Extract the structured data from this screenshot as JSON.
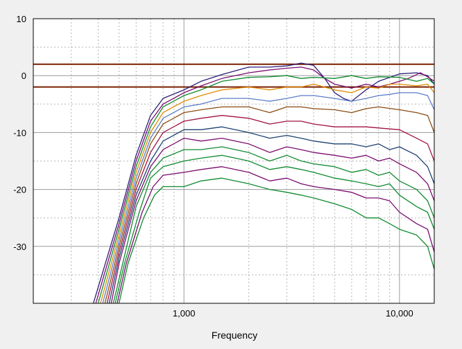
{
  "chart_data": {
    "type": "line",
    "title": "",
    "xlabel": "Frequency",
    "ylabel": "",
    "x_scale": "log",
    "xlim": [
      200,
      14500
    ],
    "ylim": [
      -40,
      10
    ],
    "x_ticks": [
      {
        "value": 1000,
        "label": "1,000"
      },
      {
        "value": 10000,
        "label": "10,000"
      }
    ],
    "y_ticks": [
      {
        "value": 10,
        "label": "10"
      },
      {
        "value": 0,
        "label": "0"
      },
      {
        "value": -10,
        "label": "-10"
      },
      {
        "value": -20,
        "label": "-20"
      },
      {
        "value": -30,
        "label": "-30"
      }
    ],
    "grid": true,
    "legend": "none",
    "reference_lines": [
      {
        "y": 2,
        "color": "#7a1f00"
      },
      {
        "y": -2,
        "color": "#7a1f00"
      }
    ],
    "series": [
      {
        "color": "#2a1e78",
        "points": [
          [
            380,
            -40
          ],
          [
            500,
            -25
          ],
          [
            600,
            -14
          ],
          [
            700,
            -7
          ],
          [
            800,
            -4
          ],
          [
            1000,
            -2.5
          ],
          [
            1200,
            -1
          ],
          [
            1500,
            0.2
          ],
          [
            2000,
            1.5
          ],
          [
            2500,
            1.5
          ],
          [
            3000,
            1.7
          ],
          [
            3500,
            2.2
          ],
          [
            4000,
            1.8
          ],
          [
            4500,
            -0.5
          ],
          [
            5000,
            -3
          ],
          [
            5500,
            -4
          ],
          [
            6000,
            -4.5
          ],
          [
            7000,
            -2.5
          ],
          [
            8000,
            -1
          ],
          [
            10000,
            0.3
          ],
          [
            12000,
            0.5
          ],
          [
            13500,
            0
          ],
          [
            14500,
            -1.5
          ]
        ]
      },
      {
        "color": "#7a0b6e",
        "points": [
          [
            390,
            -40
          ],
          [
            500,
            -26
          ],
          [
            600,
            -15
          ],
          [
            700,
            -8
          ],
          [
            800,
            -5
          ],
          [
            1000,
            -3
          ],
          [
            1200,
            -1.8
          ],
          [
            1500,
            -0.5
          ],
          [
            2000,
            0.5
          ],
          [
            2500,
            1
          ],
          [
            3000,
            1.3
          ],
          [
            3500,
            1.5
          ],
          [
            4000,
            1
          ],
          [
            4500,
            -0.5
          ],
          [
            5000,
            -1.5
          ],
          [
            6000,
            -2.2
          ],
          [
            7000,
            -1.5
          ],
          [
            8000,
            -2
          ],
          [
            9000,
            -1.5
          ],
          [
            10000,
            -1
          ],
          [
            11000,
            -0.5
          ],
          [
            12500,
            0.5
          ],
          [
            13500,
            -0.2
          ],
          [
            14500,
            -1
          ]
        ]
      },
      {
        "color": "#0e8a2e",
        "points": [
          [
            400,
            -40
          ],
          [
            500,
            -27
          ],
          [
            600,
            -16
          ],
          [
            700,
            -9
          ],
          [
            800,
            -5.5
          ],
          [
            1000,
            -3.5
          ],
          [
            1200,
            -2.5
          ],
          [
            1500,
            -1
          ],
          [
            2000,
            -0.3
          ],
          [
            2500,
            -0.2
          ],
          [
            3000,
            0
          ],
          [
            3500,
            -0.5
          ],
          [
            4000,
            -0.3
          ],
          [
            5000,
            -0.5
          ],
          [
            6000,
            0
          ],
          [
            7000,
            -0.5
          ],
          [
            8000,
            -0.2
          ],
          [
            10000,
            -0.3
          ],
          [
            12000,
            -1
          ],
          [
            13500,
            -0.5
          ],
          [
            14500,
            -1.5
          ]
        ]
      },
      {
        "color": "#e08a00",
        "points": [
          [
            410,
            -40
          ],
          [
            500,
            -28
          ],
          [
            600,
            -17
          ],
          [
            700,
            -10
          ],
          [
            800,
            -6.5
          ],
          [
            1000,
            -4.5
          ],
          [
            1200,
            -3.5
          ],
          [
            1500,
            -2.5
          ],
          [
            2000,
            -2
          ],
          [
            2500,
            -2.5
          ],
          [
            3000,
            -2
          ],
          [
            3500,
            -2
          ],
          [
            4000,
            -1.5
          ],
          [
            5000,
            -2.5
          ],
          [
            6000,
            -3
          ],
          [
            7000,
            -2
          ],
          [
            8000,
            -2.2
          ],
          [
            9000,
            -1.5
          ],
          [
            10000,
            -1.5
          ],
          [
            12000,
            -1.8
          ],
          [
            13500,
            -1.5
          ],
          [
            14500,
            -3
          ]
        ]
      },
      {
        "color": "#5a7ec8",
        "points": [
          [
            420,
            -40
          ],
          [
            500,
            -29
          ],
          [
            600,
            -18
          ],
          [
            700,
            -11
          ],
          [
            800,
            -7.5
          ],
          [
            1000,
            -5.5
          ],
          [
            1200,
            -5
          ],
          [
            1500,
            -4
          ],
          [
            2000,
            -4
          ],
          [
            2500,
            -4.5
          ],
          [
            3000,
            -4
          ],
          [
            3500,
            -3.5
          ],
          [
            4000,
            -3.5
          ],
          [
            5000,
            -4
          ],
          [
            6000,
            -4.5
          ],
          [
            7000,
            -4
          ],
          [
            8000,
            -3.5
          ],
          [
            9000,
            -3.3
          ],
          [
            10000,
            -3
          ],
          [
            12000,
            -3
          ],
          [
            13500,
            -3.5
          ],
          [
            14500,
            -6
          ]
        ]
      },
      {
        "color": "#8a4a10",
        "points": [
          [
            430,
            -40
          ],
          [
            500,
            -30
          ],
          [
            600,
            -19
          ],
          [
            700,
            -12
          ],
          [
            800,
            -8.5
          ],
          [
            1000,
            -6.5
          ],
          [
            1200,
            -6
          ],
          [
            1500,
            -5.5
          ],
          [
            2000,
            -5.5
          ],
          [
            2500,
            -6.5
          ],
          [
            3000,
            -5.5
          ],
          [
            3500,
            -5.5
          ],
          [
            4000,
            -5.8
          ],
          [
            5000,
            -6
          ],
          [
            6000,
            -6.5
          ],
          [
            7000,
            -5.8
          ],
          [
            8000,
            -5.5
          ],
          [
            10000,
            -6
          ],
          [
            12000,
            -6.5
          ],
          [
            13500,
            -7
          ],
          [
            14500,
            -10
          ]
        ]
      },
      {
        "color": "#a01040",
        "points": [
          [
            440,
            -40
          ],
          [
            500,
            -31
          ],
          [
            600,
            -20
          ],
          [
            700,
            -13.5
          ],
          [
            800,
            -10
          ],
          [
            1000,
            -8
          ],
          [
            1200,
            -7.5
          ],
          [
            1500,
            -7
          ],
          [
            2000,
            -7.5
          ],
          [
            2500,
            -8.5
          ],
          [
            3000,
            -8
          ],
          [
            3500,
            -8
          ],
          [
            4000,
            -8.5
          ],
          [
            5000,
            -9
          ],
          [
            6000,
            -9
          ],
          [
            7000,
            -9
          ],
          [
            8000,
            -9.2
          ],
          [
            10000,
            -9.5
          ],
          [
            12000,
            -11
          ],
          [
            13500,
            -12
          ],
          [
            14500,
            -15
          ]
        ]
      },
      {
        "color": "#1a4070",
        "points": [
          [
            450,
            -40
          ],
          [
            500,
            -32
          ],
          [
            600,
            -21
          ],
          [
            700,
            -15
          ],
          [
            800,
            -11.5
          ],
          [
            1000,
            -9.5
          ],
          [
            1200,
            -9.5
          ],
          [
            1500,
            -9
          ],
          [
            2000,
            -10
          ],
          [
            2500,
            -11
          ],
          [
            3000,
            -10.5
          ],
          [
            3500,
            -11
          ],
          [
            4000,
            -11.5
          ],
          [
            5000,
            -12
          ],
          [
            6000,
            -12
          ],
          [
            7000,
            -12.5
          ],
          [
            8000,
            -12
          ],
          [
            9000,
            -13
          ],
          [
            10000,
            -12.5
          ],
          [
            12000,
            -14
          ],
          [
            13500,
            -16
          ],
          [
            14500,
            -19
          ]
        ]
      },
      {
        "color": "#7a0b6e",
        "points": [
          [
            460,
            -40
          ],
          [
            500,
            -33
          ],
          [
            600,
            -22
          ],
          [
            700,
            -16
          ],
          [
            800,
            -13
          ],
          [
            1000,
            -11
          ],
          [
            1200,
            -11.5
          ],
          [
            1500,
            -11
          ],
          [
            2000,
            -12
          ],
          [
            2500,
            -13.5
          ],
          [
            3000,
            -12.5
          ],
          [
            3500,
            -13
          ],
          [
            4000,
            -13.5
          ],
          [
            5000,
            -14
          ],
          [
            6000,
            -14.5
          ],
          [
            7000,
            -14
          ],
          [
            8000,
            -15
          ],
          [
            9000,
            -14.5
          ],
          [
            10000,
            -15.5
          ],
          [
            12000,
            -17
          ],
          [
            13500,
            -19
          ],
          [
            14500,
            -22
          ]
        ]
      },
      {
        "color": "#0e8a2e",
        "points": [
          [
            470,
            -40
          ],
          [
            520,
            -33
          ],
          [
            600,
            -23
          ],
          [
            700,
            -17
          ],
          [
            800,
            -14.5
          ],
          [
            1000,
            -13
          ],
          [
            1200,
            -13
          ],
          [
            1500,
            -12.5
          ],
          [
            2000,
            -13.5
          ],
          [
            2500,
            -15
          ],
          [
            3000,
            -14
          ],
          [
            3500,
            -15
          ],
          [
            4000,
            -15.5
          ],
          [
            5000,
            -16
          ],
          [
            6000,
            -17
          ],
          [
            7000,
            -16.5
          ],
          [
            8000,
            -17.5
          ],
          [
            9000,
            -17
          ],
          [
            10000,
            -18.5
          ],
          [
            12000,
            -20
          ],
          [
            13500,
            -22
          ],
          [
            14500,
            -25
          ]
        ]
      },
      {
        "color": "#0e8a2e",
        "points": [
          [
            480,
            -40
          ],
          [
            530,
            -33
          ],
          [
            620,
            -24
          ],
          [
            700,
            -18
          ],
          [
            800,
            -16
          ],
          [
            1000,
            -15
          ],
          [
            1200,
            -14.5
          ],
          [
            1500,
            -14
          ],
          [
            2000,
            -15
          ],
          [
            2500,
            -16.5
          ],
          [
            3000,
            -16
          ],
          [
            3500,
            -16.5
          ],
          [
            4000,
            -17
          ],
          [
            5000,
            -18
          ],
          [
            6000,
            -18.5
          ],
          [
            7000,
            -19
          ],
          [
            8000,
            -19.5
          ],
          [
            9000,
            -19
          ],
          [
            10000,
            -21
          ],
          [
            12000,
            -23
          ],
          [
            13500,
            -24
          ],
          [
            14500,
            -27
          ]
        ]
      },
      {
        "color": "#7a0b6e",
        "points": [
          [
            490,
            -40
          ],
          [
            540,
            -33
          ],
          [
            640,
            -24
          ],
          [
            720,
            -19.5
          ],
          [
            800,
            -17.5
          ],
          [
            1000,
            -17
          ],
          [
            1200,
            -16.5
          ],
          [
            1500,
            -16
          ],
          [
            2000,
            -17
          ],
          [
            2500,
            -18.5
          ],
          [
            3000,
            -18
          ],
          [
            3500,
            -19
          ],
          [
            4000,
            -19.5
          ],
          [
            5000,
            -20
          ],
          [
            6000,
            -20.5
          ],
          [
            7000,
            -21.5
          ],
          [
            8000,
            -21.5
          ],
          [
            9000,
            -22
          ],
          [
            10000,
            -24
          ],
          [
            12000,
            -26
          ],
          [
            13500,
            -27
          ],
          [
            14500,
            -31
          ]
        ]
      },
      {
        "color": "#0e8a2e",
        "points": [
          [
            500,
            -40
          ],
          [
            550,
            -33
          ],
          [
            650,
            -25
          ],
          [
            730,
            -21
          ],
          [
            800,
            -19.5
          ],
          [
            1000,
            -19.5
          ],
          [
            1200,
            -18.5
          ],
          [
            1500,
            -18
          ],
          [
            2000,
            -19
          ],
          [
            2500,
            -20
          ],
          [
            3000,
            -20.5
          ],
          [
            3500,
            -21
          ],
          [
            4000,
            -21.5
          ],
          [
            5000,
            -22.5
          ],
          [
            6000,
            -23.5
          ],
          [
            7000,
            -25
          ],
          [
            8000,
            -25
          ],
          [
            9000,
            -26
          ],
          [
            10000,
            -27
          ],
          [
            12000,
            -28
          ],
          [
            13500,
            -30
          ],
          [
            14500,
            -34
          ]
        ]
      }
    ]
  }
}
